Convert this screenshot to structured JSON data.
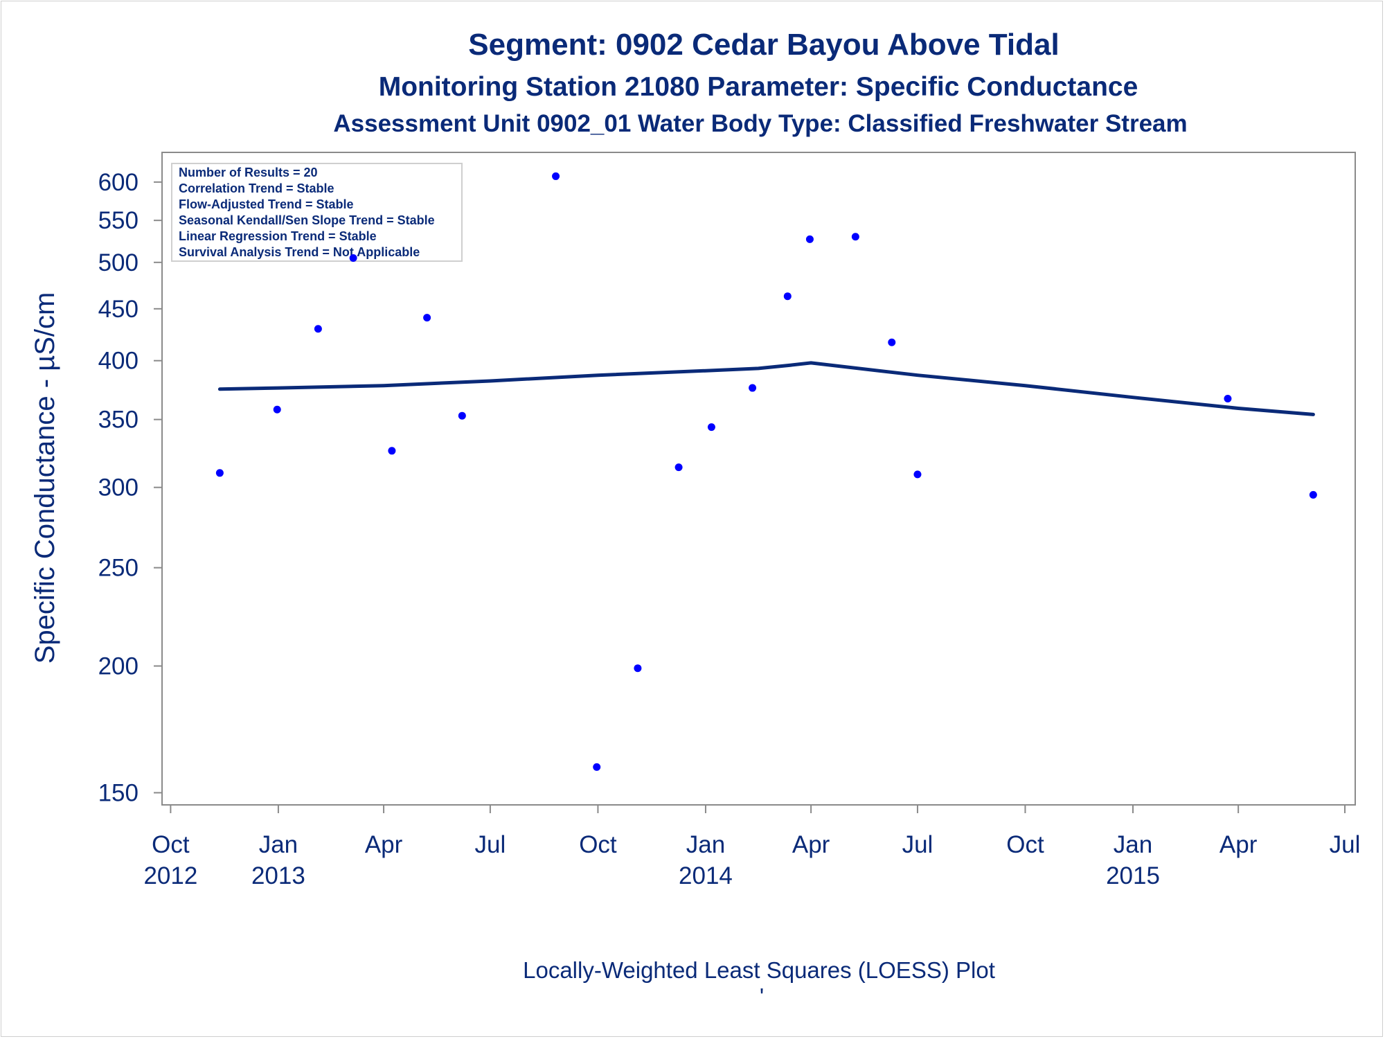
{
  "colors": {
    "text": "#0a2a78",
    "line": "#0a2a78",
    "points": "#0000ff",
    "axis": "#8a8a8a",
    "frame": "#cfcfcf"
  },
  "chart_data": {
    "type": "scatter",
    "title": "Segment: 0902  Cedar Bayou Above Tidal",
    "subtitle": "Monitoring Station 21080 Parameter: Specific Conductance",
    "subtitle2": "Assessment Unit 0902_01   Water Body Type: Classified Freshwater Stream",
    "xlabel": "",
    "ylabel": "Specific Conductance -  µS/cm",
    "footer": "Locally-Weighted Least Squares (LOESS) Plot",
    "footer_mark": "'",
    "y_scale": "log",
    "ylim": [
      148,
      620
    ],
    "xlim": [
      "2012-09-29",
      "2015-07-01"
    ],
    "grid": false,
    "y_ticks": [
      150,
      200,
      250,
      300,
      350,
      400,
      450,
      500,
      550,
      600
    ],
    "x_ticks": [
      {
        "date": "2012-10-01",
        "label": "Oct",
        "year": "2012"
      },
      {
        "date": "2013-01-01",
        "label": "Jan",
        "year": "2013"
      },
      {
        "date": "2013-04-01",
        "label": "Apr",
        "year": ""
      },
      {
        "date": "2013-07-01",
        "label": "Jul",
        "year": ""
      },
      {
        "date": "2013-10-01",
        "label": "Oct",
        "year": ""
      },
      {
        "date": "2014-01-01",
        "label": "Jan",
        "year": "2014"
      },
      {
        "date": "2014-04-01",
        "label": "Apr",
        "year": ""
      },
      {
        "date": "2014-07-01",
        "label": "Jul",
        "year": ""
      },
      {
        "date": "2014-10-01",
        "label": "Oct",
        "year": ""
      },
      {
        "date": "2015-01-01",
        "label": "Jan",
        "year": "2015"
      },
      {
        "date": "2015-04-01",
        "label": "Apr",
        "year": ""
      },
      {
        "date": "2015-07-01",
        "label": "Jul",
        "year": ""
      }
    ],
    "stats_box": [
      "Number of Results = 20",
      "Correlation Trend = Stable",
      "Flow-Adjusted Trend = Stable",
      "Seasonal Kendall/Sen Slope Trend = Stable",
      "Linear Regression Trend = Stable",
      "Survival Analysis Trend = Not Applicable"
    ],
    "series": [
      {
        "type": "scatter",
        "points": [
          {
            "x": "2012-11-12",
            "y": 310
          },
          {
            "x": "2012-12-31",
            "y": 358
          },
          {
            "x": "2013-02-04",
            "y": 430
          },
          {
            "x": "2013-03-06",
            "y": 505
          },
          {
            "x": "2013-04-08",
            "y": 326
          },
          {
            "x": "2013-05-08",
            "y": 441
          },
          {
            "x": "2013-06-07",
            "y": 353
          },
          {
            "x": "2013-08-26",
            "y": 608
          },
          {
            "x": "2013-09-30",
            "y": 159
          },
          {
            "x": "2013-11-04",
            "y": 199
          },
          {
            "x": "2013-12-09",
            "y": 314
          },
          {
            "x": "2014-01-06",
            "y": 344
          },
          {
            "x": "2014-02-10",
            "y": 376
          },
          {
            "x": "2014-03-12",
            "y": 463
          },
          {
            "x": "2014-03-31",
            "y": 527
          },
          {
            "x": "2014-05-09",
            "y": 530
          },
          {
            "x": "2014-06-09",
            "y": 417
          },
          {
            "x": "2014-07-01",
            "y": 309
          },
          {
            "x": "2015-03-23",
            "y": 367
          },
          {
            "x": "2015-06-04",
            "y": 295
          }
        ]
      },
      {
        "type": "line",
        "points": [
          {
            "x": "2012-11-12",
            "y": 375
          },
          {
            "x": "2013-01-01",
            "y": 376
          },
          {
            "x": "2013-04-01",
            "y": 378
          },
          {
            "x": "2013-07-01",
            "y": 382
          },
          {
            "x": "2013-10-01",
            "y": 387
          },
          {
            "x": "2014-01-01",
            "y": 391
          },
          {
            "x": "2014-02-15",
            "y": 393
          },
          {
            "x": "2014-03-15",
            "y": 396
          },
          {
            "x": "2014-04-01",
            "y": 398
          },
          {
            "x": "2014-07-01",
            "y": 387
          },
          {
            "x": "2014-10-01",
            "y": 378
          },
          {
            "x": "2015-01-01",
            "y": 368
          },
          {
            "x": "2015-04-01",
            "y": 359
          },
          {
            "x": "2015-06-04",
            "y": 354
          }
        ]
      }
    ]
  }
}
